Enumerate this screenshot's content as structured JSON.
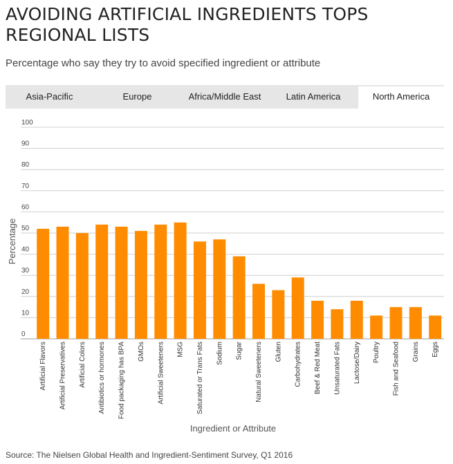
{
  "header": {
    "title": "AVOIDING ARTIFICIAL INGREDIENTS TOPS REGIONAL LISTS",
    "subtitle": "Percentage who say they try to avoid specified ingredient or attribute"
  },
  "tabs": [
    {
      "label": "Asia-Pacific",
      "active": false
    },
    {
      "label": "Europe",
      "active": false
    },
    {
      "label": "Africa/Middle East",
      "active": false
    },
    {
      "label": "Latin America",
      "active": false
    },
    {
      "label": "North America",
      "active": true
    }
  ],
  "source": "Source: The Nielsen Global Health and Ingredient-Sentiment Survey, Q1 2016",
  "colors": {
    "bar": "#ff8c00",
    "grid": "#cfcfcf",
    "tab_bg": "#e6e6e6"
  },
  "chart_data": {
    "type": "bar",
    "categories": [
      "Artificial Flavors",
      "Artificial Preservatives",
      "Artificial Colors",
      "Antibiotics or hormones",
      "Food packaging has BPA",
      "GMOs",
      "Artificial Sweeteners",
      "MSG",
      "Saturated or Trans Fats",
      "Sodium",
      "Sugar",
      "Natural Sweeteners",
      "Gluten",
      "Carbohydrates",
      "Beef & Red Meat",
      "Unsaturated Fats",
      "Lactose/Dairy",
      "Poultry",
      "Fish and Seafood",
      "Grains",
      "Eggs"
    ],
    "values": [
      52,
      53,
      50,
      54,
      53,
      51,
      54,
      55,
      46,
      47,
      39,
      26,
      23,
      29,
      18,
      14,
      18,
      11,
      15,
      15,
      11
    ],
    "xlabel": "Ingredient or Attribute",
    "ylabel": "Percentage",
    "ylim": [
      0,
      100
    ],
    "yticks": [
      0,
      10,
      20,
      30,
      40,
      50,
      60,
      70,
      80,
      90,
      100
    ],
    "grid": true
  }
}
